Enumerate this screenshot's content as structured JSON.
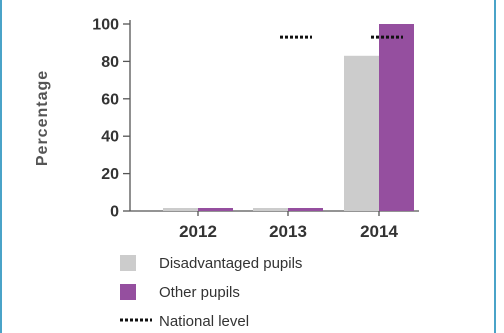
{
  "chart_data": {
    "type": "bar",
    "ylabel": "Percentage",
    "ylim": [
      0,
      100
    ],
    "yticks": [
      0,
      20,
      40,
      60,
      80,
      100
    ],
    "categories": [
      "2012",
      "2013",
      "2014"
    ],
    "series": [
      {
        "name": "Disadvantaged pupils",
        "color": "#cccccc",
        "values": [
          0,
          0,
          83
        ]
      },
      {
        "name": "Other pupils",
        "color": "#954f9f",
        "values": [
          0,
          0,
          100
        ]
      }
    ],
    "national_level": {
      "name": "National level",
      "values": [
        null,
        93,
        93
      ]
    },
    "legend_placement": "bottom",
    "grid": false
  }
}
